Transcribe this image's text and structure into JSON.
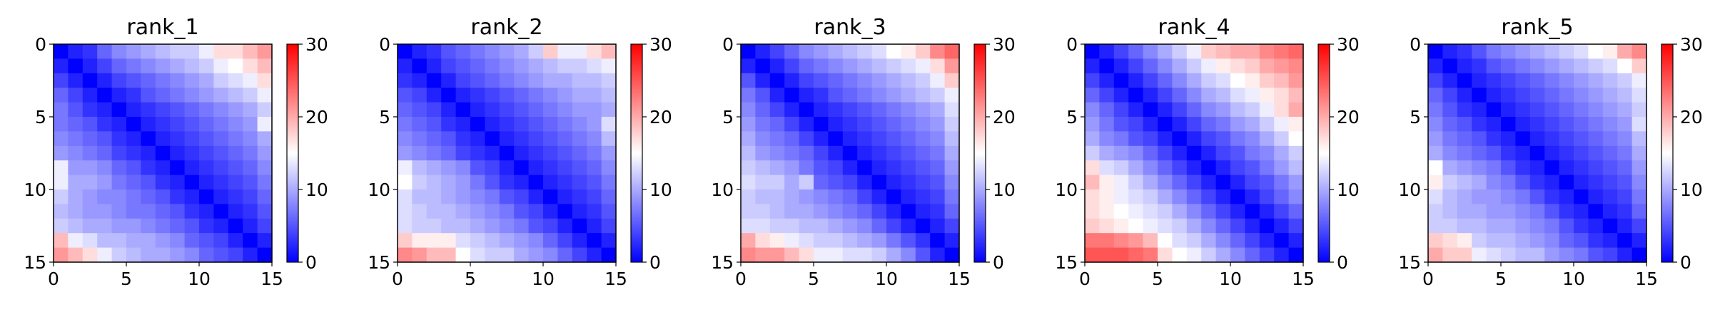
{
  "chart_data": [
    {
      "type": "heatmap",
      "title": "rank_1",
      "x_ticks": [
        "0",
        "5",
        "10",
        "15"
      ],
      "y_ticks": [
        "0",
        "5",
        "10",
        "15"
      ],
      "xlim": [
        0,
        15
      ],
      "ylim": [
        15,
        0
      ],
      "colorbar": {
        "ticks": [
          "0",
          "10",
          "20",
          "30"
        ],
        "range": [
          0,
          30
        ],
        "colormap": "bwr",
        "colors": [
          "#0000ff",
          "#ffffff",
          "#ff0000"
        ]
      },
      "matrix": [
        [
          0,
          2,
          3,
          6,
          8,
          9,
          10,
          11,
          12,
          12,
          14,
          17,
          17,
          19,
          21
        ],
        [
          2,
          0,
          2,
          4,
          6,
          7,
          8,
          9,
          10,
          11,
          12,
          14,
          15,
          17,
          19
        ],
        [
          4,
          2,
          0,
          2,
          4,
          5,
          6,
          7,
          8,
          9,
          10,
          12,
          13,
          14,
          17
        ],
        [
          6,
          4,
          2,
          0,
          2,
          3,
          5,
          6,
          7,
          8,
          9,
          10,
          11,
          12,
          14
        ],
        [
          7,
          5,
          3,
          2,
          0,
          2,
          3,
          4,
          5,
          6,
          7,
          8,
          9,
          10,
          12
        ],
        [
          7,
          6,
          5,
          3,
          2,
          0,
          2,
          3,
          4,
          5,
          6,
          7,
          8,
          9,
          14
        ],
        [
          8,
          7,
          6,
          5,
          3,
          2,
          0,
          2,
          3,
          4,
          5,
          6,
          7,
          8,
          10
        ],
        [
          9,
          8,
          7,
          6,
          4,
          3,
          2,
          0,
          2,
          3,
          4,
          5,
          6,
          7,
          9
        ],
        [
          14,
          9,
          9,
          8,
          6,
          5,
          3,
          2,
          0,
          2,
          3,
          4,
          5,
          6,
          8
        ],
        [
          14,
          10,
          10,
          9,
          7,
          6,
          5,
          3,
          2,
          0,
          2,
          3,
          4,
          5,
          7
        ],
        [
          12,
          10,
          9,
          8,
          8,
          7,
          6,
          5,
          3,
          2,
          0,
          2,
          3,
          4,
          6
        ],
        [
          11,
          10,
          9,
          9,
          8,
          7,
          7,
          6,
          5,
          3,
          2,
          0,
          2,
          3,
          5
        ],
        [
          12,
          11,
          10,
          10,
          9,
          9,
          8,
          7,
          6,
          5,
          3,
          2,
          0,
          2,
          4
        ],
        [
          19,
          14,
          13,
          11,
          11,
          10,
          10,
          9,
          8,
          6,
          5,
          4,
          2,
          0,
          2
        ],
        [
          21,
          19,
          17,
          14,
          12,
          11,
          10,
          10,
          9,
          8,
          6,
          5,
          4,
          2,
          0
        ]
      ]
    },
    {
      "type": "heatmap",
      "title": "rank_2",
      "x_ticks": [
        "0",
        "5",
        "10",
        "15"
      ],
      "y_ticks": [
        "0",
        "5",
        "10",
        "15"
      ],
      "xlim": [
        0,
        15
      ],
      "ylim": [
        15,
        0
      ],
      "colorbar": {
        "ticks": [
          "0",
          "10",
          "20",
          "30"
        ],
        "range": [
          0,
          30
        ],
        "colormap": "bwr",
        "colors": [
          "#0000ff",
          "#ffffff",
          "#ff0000"
        ]
      },
      "matrix": [
        [
          0,
          2,
          3,
          5,
          6,
          7,
          8,
          9,
          10,
          12,
          18,
          14,
          14,
          17,
          19
        ],
        [
          2,
          0,
          2,
          4,
          5,
          6,
          7,
          8,
          9,
          10,
          11,
          12,
          12,
          13,
          14
        ],
        [
          3,
          2,
          0,
          2,
          4,
          5,
          6,
          7,
          8,
          9,
          10,
          10,
          11,
          11,
          12
        ],
        [
          5,
          4,
          2,
          0,
          2,
          3,
          4,
          5,
          6,
          7,
          8,
          9,
          10,
          10,
          11
        ],
        [
          6,
          5,
          4,
          2,
          0,
          2,
          3,
          4,
          5,
          6,
          7,
          8,
          9,
          9,
          10
        ],
        [
          7,
          6,
          5,
          3,
          2,
          0,
          2,
          3,
          4,
          5,
          6,
          7,
          8,
          9,
          13
        ],
        [
          8,
          7,
          6,
          5,
          3,
          2,
          0,
          2,
          3,
          4,
          5,
          6,
          7,
          8,
          11
        ],
        [
          9,
          8,
          7,
          6,
          4,
          3,
          2,
          0,
          2,
          3,
          4,
          5,
          6,
          7,
          9
        ],
        [
          14,
          11,
          10,
          9,
          8,
          5,
          4,
          2,
          0,
          2,
          3,
          4,
          5,
          6,
          8
        ],
        [
          15,
          12,
          11,
          10,
          9,
          7,
          5,
          3,
          2,
          0,
          2,
          3,
          4,
          5,
          7
        ],
        [
          13,
          11,
          11,
          10,
          9,
          8,
          7,
          5,
          4,
          2,
          0,
          2,
          3,
          4,
          6
        ],
        [
          13,
          12,
          11,
          11,
          10,
          9,
          8,
          7,
          5,
          4,
          2,
          0,
          2,
          3,
          5
        ],
        [
          13,
          12,
          12,
          11,
          11,
          10,
          9,
          8,
          7,
          5,
          4,
          2,
          0,
          2,
          4
        ],
        [
          18,
          16,
          16,
          16,
          13,
          12,
          11,
          10,
          9,
          8,
          6,
          4,
          2,
          0,
          2
        ],
        [
          22,
          21,
          19,
          19,
          15,
          13,
          12,
          12,
          10,
          9,
          8,
          6,
          4,
          2,
          0
        ]
      ]
    },
    {
      "type": "heatmap",
      "title": "rank_3",
      "x_ticks": [
        "0",
        "5",
        "10",
        "15"
      ],
      "y_ticks": [
        "0",
        "5",
        "10",
        "15"
      ],
      "xlim": [
        0,
        15
      ],
      "ylim": [
        15,
        0
      ],
      "colorbar": {
        "ticks": [
          "0",
          "10",
          "20",
          "30"
        ],
        "range": [
          0,
          30
        ],
        "colormap": "bwr",
        "colors": [
          "#0000ff",
          "#ffffff",
          "#ff0000"
        ]
      },
      "matrix": [
        [
          0,
          2,
          4,
          6,
          8,
          9,
          10,
          11,
          12,
          13,
          15,
          16,
          18,
          22,
          24
        ],
        [
          2,
          0,
          2,
          4,
          6,
          7,
          8,
          9,
          10,
          11,
          12,
          13,
          14,
          17,
          21
        ],
        [
          5,
          2,
          0,
          2,
          4,
          5,
          6,
          7,
          8,
          9,
          10,
          11,
          12,
          14,
          18
        ],
        [
          7,
          5,
          2,
          0,
          2,
          3,
          5,
          6,
          7,
          8,
          9,
          10,
          11,
          12,
          14
        ],
        [
          8,
          6,
          4,
          2,
          0,
          2,
          3,
          4,
          5,
          6,
          7,
          8,
          9,
          10,
          13
        ],
        [
          9,
          7,
          6,
          4,
          2,
          0,
          2,
          3,
          4,
          5,
          6,
          7,
          8,
          9,
          12
        ],
        [
          10,
          8,
          7,
          6,
          4,
          2,
          0,
          2,
          3,
          4,
          5,
          6,
          7,
          8,
          11
        ],
        [
          11,
          9,
          8,
          7,
          6,
          4,
          2,
          0,
          2,
          3,
          4,
          5,
          6,
          7,
          10
        ],
        [
          12,
          11,
          10,
          9,
          7,
          5,
          4,
          2,
          0,
          2,
          3,
          4,
          5,
          6,
          9
        ],
        [
          13,
          12,
          12,
          10,
          12,
          6,
          5,
          4,
          2,
          0,
          2,
          3,
          4,
          5,
          8
        ],
        [
          12,
          11,
          11,
          10,
          9,
          8,
          7,
          6,
          4,
          2,
          0,
          2,
          3,
          4,
          7
        ],
        [
          12,
          12,
          11,
          10,
          10,
          9,
          8,
          7,
          6,
          4,
          2,
          0,
          2,
          3,
          6
        ],
        [
          13,
          13,
          12,
          12,
          11,
          11,
          10,
          9,
          8,
          6,
          4,
          2,
          0,
          2,
          4
        ],
        [
          20,
          17,
          16,
          14,
          13,
          12,
          12,
          11,
          10,
          9,
          7,
          5,
          3,
          0,
          2
        ],
        [
          22,
          21,
          21,
          19,
          17,
          14,
          14,
          13,
          13,
          12,
          10,
          8,
          5,
          2,
          0
        ]
      ]
    },
    {
      "type": "heatmap",
      "title": "rank_4",
      "x_ticks": [
        "0",
        "5",
        "10",
        "15"
      ],
      "y_ticks": [
        "0",
        "5",
        "10",
        "15"
      ],
      "xlim": [
        0,
        15
      ],
      "ylim": [
        15,
        0
      ],
      "colorbar": {
        "ticks": [
          "0",
          "10",
          "20",
          "30"
        ],
        "range": [
          0,
          30
        ],
        "colormap": "bwr",
        "colors": [
          "#0000ff",
          "#ffffff",
          "#ff0000"
        ]
      },
      "matrix": [
        [
          0,
          2,
          4,
          6,
          8,
          10,
          12,
          14,
          18,
          19,
          20,
          20,
          22,
          23,
          24
        ],
        [
          2,
          0,
          2,
          4,
          6,
          8,
          10,
          12,
          14,
          16,
          17,
          18,
          20,
          21,
          22
        ],
        [
          4,
          2,
          0,
          2,
          4,
          6,
          8,
          10,
          12,
          13,
          15,
          16,
          18,
          19,
          21
        ],
        [
          6,
          4,
          2,
          0,
          2,
          4,
          6,
          8,
          10,
          11,
          13,
          14,
          16,
          17,
          19
        ],
        [
          8,
          6,
          4,
          2,
          0,
          2,
          4,
          6,
          8,
          9,
          11,
          12,
          14,
          17,
          20
        ],
        [
          9,
          7,
          5,
          4,
          2,
          0,
          2,
          4,
          6,
          7,
          9,
          10,
          12,
          14,
          16
        ],
        [
          10,
          8,
          7,
          5,
          4,
          2,
          0,
          2,
          4,
          5,
          7,
          8,
          10,
          12,
          15
        ],
        [
          12,
          10,
          9,
          8,
          6,
          4,
          2,
          0,
          2,
          4,
          5,
          7,
          8,
          10,
          12
        ],
        [
          17,
          13,
          12,
          10,
          8,
          6,
          4,
          2,
          0,
          2,
          4,
          5,
          7,
          9,
          11
        ],
        [
          19,
          16,
          14,
          12,
          10,
          8,
          6,
          4,
          2,
          0,
          2,
          4,
          5,
          7,
          9
        ],
        [
          17,
          16,
          14,
          13,
          12,
          10,
          8,
          6,
          4,
          2,
          0,
          2,
          4,
          6,
          8
        ],
        [
          17,
          16,
          15,
          14,
          13,
          12,
          10,
          8,
          6,
          4,
          2,
          0,
          2,
          4,
          6
        ],
        [
          18,
          17,
          16,
          15,
          14,
          13,
          12,
          10,
          8,
          6,
          4,
          2,
          0,
          2,
          4
        ],
        [
          23,
          23,
          22,
          21,
          19,
          15,
          13,
          12,
          10,
          8,
          6,
          4,
          2,
          0,
          2
        ],
        [
          25,
          25,
          25,
          24,
          23,
          17,
          15,
          14,
          12,
          10,
          8,
          6,
          4,
          2,
          0
        ]
      ]
    },
    {
      "type": "heatmap",
      "title": "rank_5",
      "x_ticks": [
        "0",
        "5",
        "10",
        "15"
      ],
      "y_ticks": [
        "0",
        "5",
        "10",
        "15"
      ],
      "xlim": [
        0,
        15
      ],
      "ylim": [
        15,
        0
      ],
      "colorbar": {
        "ticks": [
          "0",
          "10",
          "20",
          "30"
        ],
        "range": [
          0,
          30
        ],
        "colormap": "bwr",
        "colors": [
          "#0000ff",
          "#ffffff",
          "#ff0000"
        ]
      },
      "matrix": [
        [
          0,
          2,
          3,
          5,
          7,
          8,
          9,
          10,
          11,
          12,
          13,
          15,
          16,
          20,
          22
        ],
        [
          2,
          0,
          2,
          3,
          5,
          6,
          7,
          8,
          9,
          10,
          11,
          12,
          13,
          15,
          18
        ],
        [
          4,
          2,
          0,
          2,
          3,
          4,
          5,
          6,
          7,
          8,
          9,
          10,
          11,
          12,
          14
        ],
        [
          6,
          4,
          2,
          0,
          2,
          3,
          4,
          5,
          6,
          7,
          8,
          9,
          10,
          11,
          13
        ],
        [
          7,
          5,
          3,
          2,
          0,
          2,
          3,
          4,
          5,
          6,
          7,
          8,
          9,
          10,
          12
        ],
        [
          8,
          6,
          5,
          3,
          2,
          0,
          2,
          3,
          4,
          5,
          6,
          7,
          8,
          9,
          13
        ],
        [
          9,
          7,
          6,
          5,
          3,
          2,
          0,
          2,
          3,
          4,
          5,
          6,
          7,
          8,
          11
        ],
        [
          10,
          8,
          7,
          6,
          5,
          3,
          2,
          0,
          2,
          3,
          4,
          5,
          6,
          7,
          10
        ],
        [
          15,
          10,
          9,
          8,
          7,
          5,
          3,
          2,
          0,
          2,
          3,
          4,
          5,
          6,
          9
        ],
        [
          16,
          12,
          11,
          10,
          8,
          7,
          5,
          3,
          2,
          0,
          2,
          3,
          4,
          5,
          8
        ],
        [
          13,
          11,
          10,
          9,
          9,
          8,
          7,
          5,
          3,
          2,
          0,
          2,
          3,
          4,
          7
        ],
        [
          12,
          11,
          10,
          10,
          9,
          9,
          8,
          7,
          5,
          3,
          2,
          0,
          2,
          3,
          6
        ],
        [
          12,
          12,
          11,
          11,
          10,
          10,
          9,
          8,
          7,
          5,
          3,
          2,
          0,
          2,
          4
        ],
        [
          18,
          17,
          16,
          12,
          11,
          11,
          10,
          9,
          8,
          6,
          5,
          3,
          2,
          0,
          2
        ],
        [
          20,
          18,
          18,
          14,
          13,
          12,
          11,
          11,
          9,
          8,
          7,
          5,
          4,
          2,
          0
        ]
      ]
    }
  ]
}
